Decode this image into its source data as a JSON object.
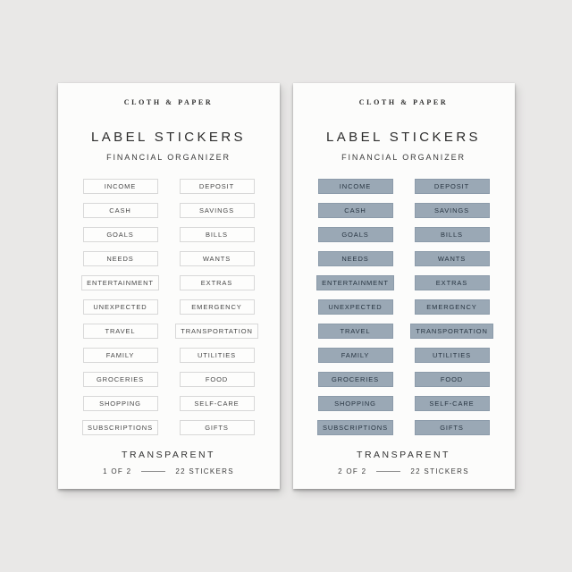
{
  "brand": "CLOTH & PAPER",
  "title": "LABEL STICKERS",
  "subtitle": "FINANCIAL ORGANIZER",
  "material_label": "TRANSPARENT",
  "count_label": "22 STICKERS",
  "labels": [
    [
      "INCOME",
      "DEPOSIT"
    ],
    [
      "CASH",
      "SAVINGS"
    ],
    [
      "GOALS",
      "BILLS"
    ],
    [
      "NEEDS",
      "WANTS"
    ],
    [
      "ENTERTAINMENT",
      "EXTRAS"
    ],
    [
      "UNEXPECTED",
      "EMERGENCY"
    ],
    [
      "TRAVEL",
      "TRANSPORTATION"
    ],
    [
      "FAMILY",
      "UTILITIES"
    ],
    [
      "GROCERIES",
      "FOOD"
    ],
    [
      "SHOPPING",
      "SELF-CARE"
    ],
    [
      "SUBSCRIPTIONS",
      "GIFTS"
    ]
  ],
  "sheets": [
    {
      "style": "outline",
      "page_label": "1 OF 2"
    },
    {
      "style": "filled",
      "page_label": "2 OF 2"
    }
  ],
  "colors": {
    "background": "#e9e8e7",
    "sheet": "#fcfcfb",
    "ink": "#2e2e2e",
    "outline_sticker_border": "#d8d8d8",
    "outline_sticker_text": "#474747",
    "filled_sticker_fill": "#9aa8b5",
    "filled_sticker_border": "#8c9baa",
    "filled_sticker_text": "#273441"
  }
}
